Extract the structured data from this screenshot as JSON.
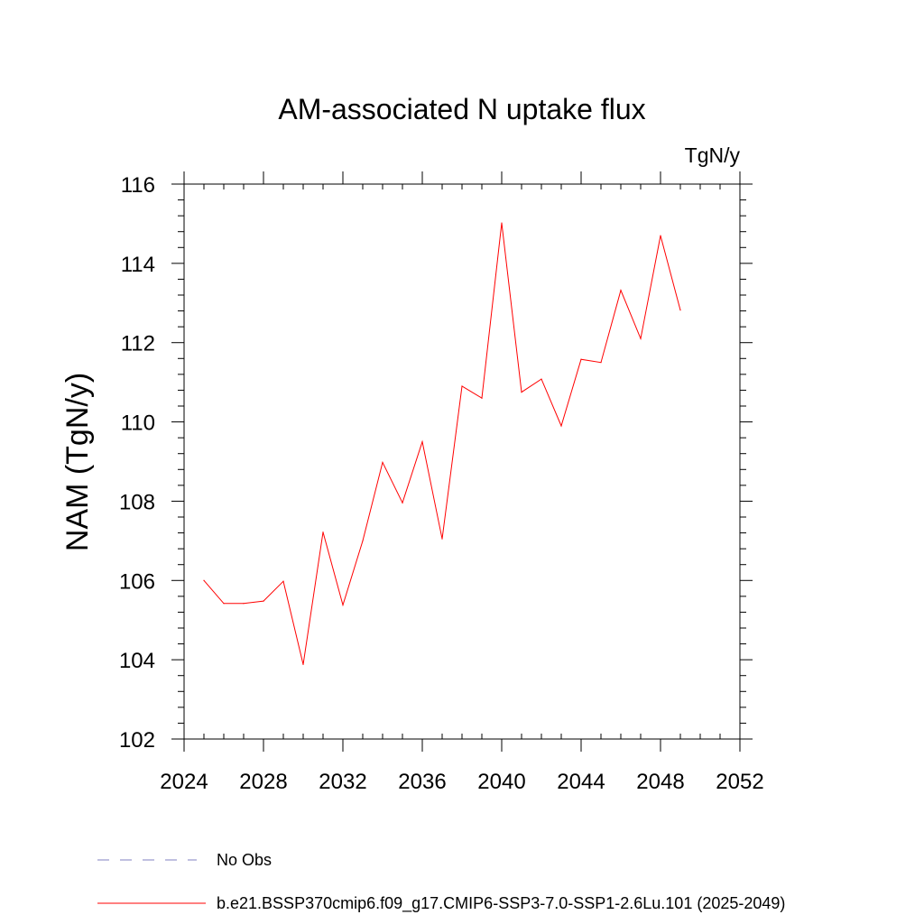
{
  "chart_data": {
    "type": "line",
    "title": "AM-associated N uptake flux",
    "units_label": "TgN/y",
    "ylabel": "NAM  (TgN/y)",
    "xlabel": "",
    "xlim": [
      2024,
      2052
    ],
    "ylim": [
      102,
      116
    ],
    "x_ticks": [
      2024,
      2028,
      2032,
      2036,
      2040,
      2044,
      2048,
      2052
    ],
    "y_ticks": [
      102,
      104,
      106,
      108,
      110,
      112,
      114,
      116
    ],
    "x_minor_step": 1,
    "y_minor_step": 0.4,
    "grid": false,
    "series": [
      {
        "name": "b.e21.BSSP370cmip6.f09_g17.CMIP6-SSP3-7.0-SSP1-2.6Lu.101 (2025-2049)",
        "color": "#ff0000",
        "x": [
          2025,
          2026,
          2027,
          2028,
          2029,
          2030,
          2031,
          2032,
          2033,
          2034,
          2035,
          2036,
          2037,
          2038,
          2039,
          2040,
          2041,
          2042,
          2043,
          2044,
          2045,
          2046,
          2047,
          2048,
          2049
        ],
        "y": [
          106.0,
          105.42,
          105.42,
          105.48,
          105.98,
          103.88,
          107.22,
          105.38,
          107.0,
          108.98,
          107.96,
          109.5,
          107.05,
          110.9,
          110.6,
          115.02,
          110.75,
          111.08,
          109.9,
          111.58,
          111.5,
          113.32,
          112.1,
          114.7,
          112.82
        ]
      }
    ],
    "legend": [
      {
        "label": "No Obs",
        "style": "dashed",
        "color": "#8080c0"
      },
      {
        "label": "b.e21.BSSP370cmip6.f09_g17.CMIP6-SSP3-7.0-SSP1-2.6Lu.101 (2025-2049)",
        "style": "solid",
        "color": "#ff0000"
      }
    ],
    "legend_position": "bottom-left"
  }
}
